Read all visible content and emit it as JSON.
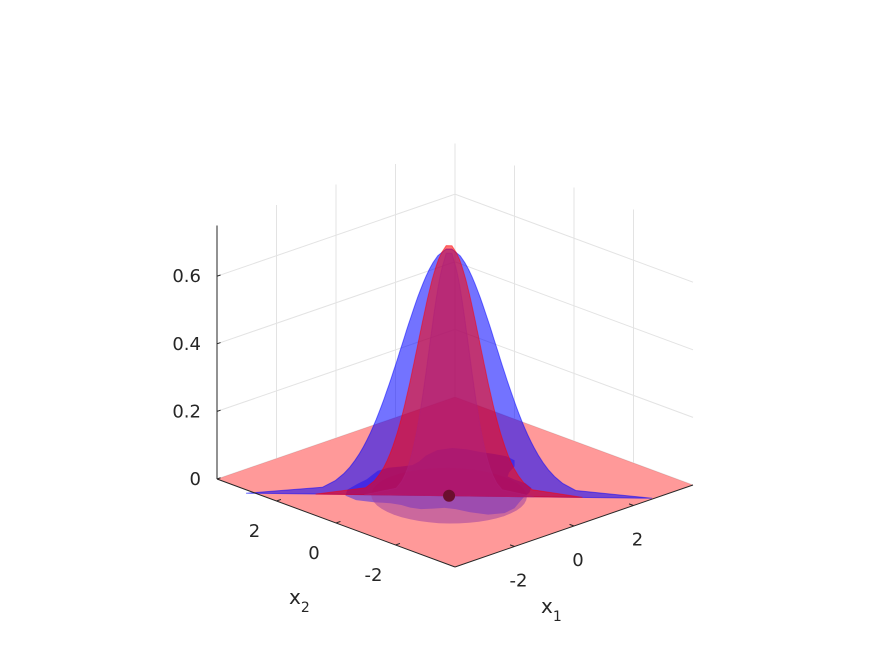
{
  "chart_data": {
    "type": "surface3d",
    "xlabel": "x",
    "xlabel_sub": "1",
    "ylabel": "x",
    "ylabel_sub": "2",
    "zlabel": "",
    "xlim": [
      -4,
      4
    ],
    "ylim": [
      -4,
      4
    ],
    "zlim": [
      0,
      0.75
    ],
    "x_ticks": [
      -2,
      0,
      2
    ],
    "y_ticks": [
      -2,
      0,
      2
    ],
    "z_ticks": [
      0,
      0.2,
      0.4,
      0.6
    ],
    "x_tick_labels": [
      "-2",
      "0",
      "2"
    ],
    "y_tick_labels": [
      "-2",
      "0",
      "2"
    ],
    "z_tick_labels": [
      "0",
      "0.2",
      "0.4",
      "0.6"
    ],
    "grid": true,
    "legend": "none",
    "series": [
      {
        "color": "#ff0000",
        "opacity": 0.4,
        "center": [
          -0.75,
          -0.55
        ],
        "sigma": [
          0.55,
          0.55
        ],
        "peak": 0.74
      },
      {
        "color": "#0000ff",
        "opacity": 0.4,
        "center": [
          -0.75,
          -0.55
        ],
        "sigma": [
          0.62,
          0.6
        ],
        "peak": 0.73
      }
    ],
    "marker": {
      "x": -0.75,
      "y": -0.55,
      "z": 0,
      "color": "#6b0f2e"
    }
  }
}
